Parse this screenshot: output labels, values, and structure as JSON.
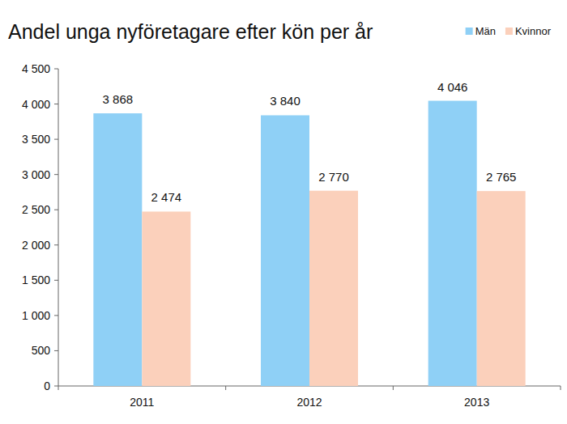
{
  "chart_data": {
    "type": "bar",
    "title": "Andel unga nyföretagare efter kön per år",
    "categories": [
      "2011",
      "2012",
      "2013"
    ],
    "series": [
      {
        "name": "Män",
        "color": "#8fd0f6",
        "values": [
          3868,
          3840,
          4046
        ],
        "value_labels": [
          "3 868",
          "3 840",
          "4 046"
        ]
      },
      {
        "name": "Kvinnor",
        "color": "#fbd0bb",
        "values": [
          2474,
          2770,
          2765
        ],
        "value_labels": [
          "2 474",
          "2 770",
          "2 765"
        ]
      }
    ],
    "ylim": [
      0,
      4500
    ],
    "yticks": [
      0,
      500,
      {
        "value": 1000,
        "label": "1 000"
      },
      {
        "value": 1500,
        "label": "1 500"
      },
      {
        "value": 2000,
        "label": "2 000"
      },
      {
        "value": 2500,
        "label": "2 500"
      },
      {
        "value": 3000,
        "label": "3 000"
      },
      {
        "value": 3500,
        "label": "3 500"
      },
      {
        "value": 4000,
        "label": "4 000"
      },
      {
        "value": 4500,
        "label": "4 500"
      }
    ],
    "grid": false,
    "legend": "top-right",
    "data_labels": true
  }
}
